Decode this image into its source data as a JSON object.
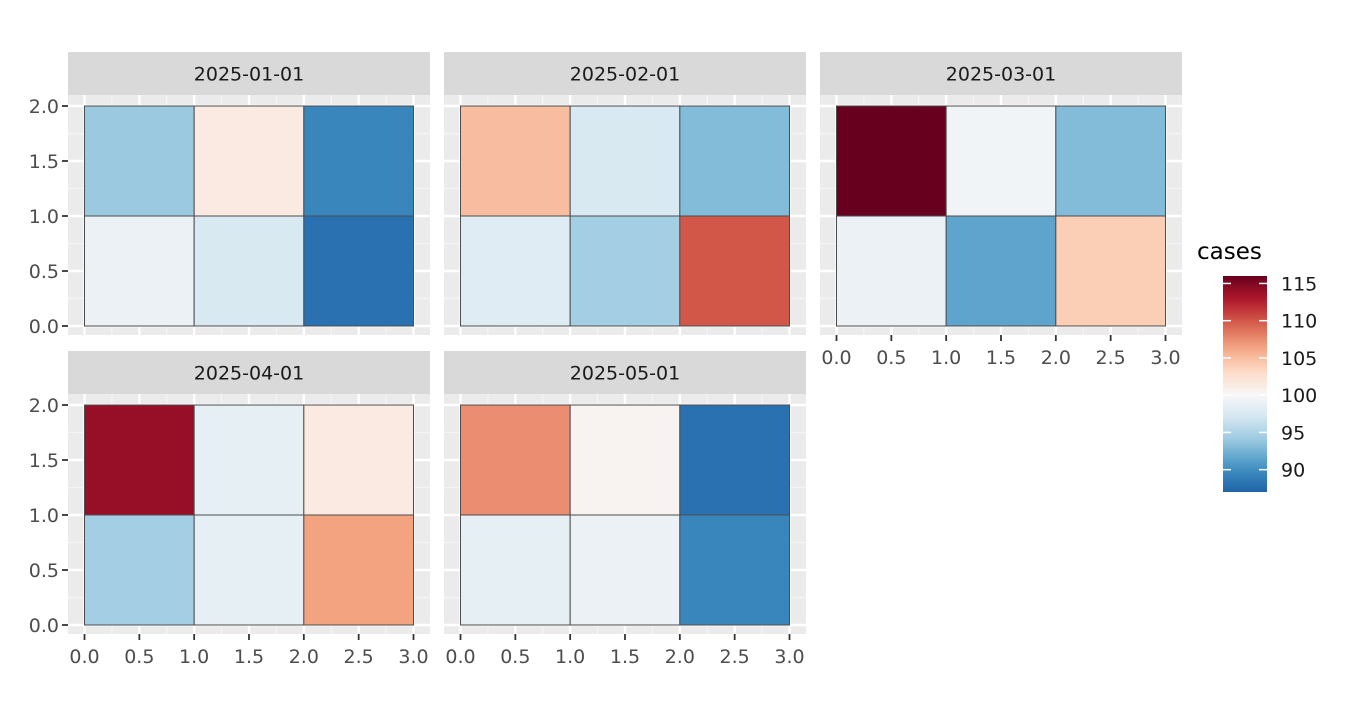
{
  "chart_data": {
    "type": "heatmap",
    "facet_by": "date",
    "x_ticks": [
      "0.0",
      "0.5",
      "1.0",
      "1.5",
      "2.0",
      "2.5",
      "3.0"
    ],
    "y_ticks": [
      "0.0",
      "0.5",
      "1.0",
      "1.5",
      "2.0"
    ],
    "xlim": [
      0,
      3
    ],
    "ylim": [
      0,
      2
    ],
    "grid": true,
    "panels": [
      {
        "title": "2025-01-01",
        "cells": [
          {
            "x": 0,
            "y": 1,
            "value": 94
          },
          {
            "x": 1,
            "y": 1,
            "value": 101.5
          },
          {
            "x": 2,
            "y": 1,
            "value": 89.5
          },
          {
            "x": 0,
            "y": 0,
            "value": 99
          },
          {
            "x": 1,
            "y": 0,
            "value": 97.5
          },
          {
            "x": 2,
            "y": 0,
            "value": 88
          }
        ]
      },
      {
        "title": "2025-02-01",
        "cells": [
          {
            "x": 0,
            "y": 1,
            "value": 105
          },
          {
            "x": 1,
            "y": 1,
            "value": 97.5
          },
          {
            "x": 2,
            "y": 1,
            "value": 93
          }
        ]
      },
      {
        "title": "2025-03-01",
        "cells": [
          {
            "x": 0,
            "y": 1,
            "value": 116
          },
          {
            "x": 1,
            "y": 1,
            "value": 99.5
          },
          {
            "x": 2,
            "y": 1,
            "value": 93
          }
        ]
      },
      {
        "title": "2025-04-01",
        "cells": [
          {
            "x": 0,
            "y": 1,
            "value": 114
          },
          {
            "x": 1,
            "y": 1,
            "value": 98.5
          },
          {
            "x": 2,
            "y": 1,
            "value": 101.5
          }
        ]
      },
      {
        "title": "2025-05-01",
        "cells": [
          {
            "x": 0,
            "y": 1,
            "value": 107.5
          },
          {
            "x": 1,
            "y": 1,
            "value": 100.5
          },
          {
            "x": 2,
            "y": 1,
            "value": 88
          }
        ]
      }
    ],
    "legend": {
      "title": "cases",
      "placement": "right",
      "range": [
        87,
        116
      ],
      "ticks": [
        {
          "value": 115,
          "label": "115"
        },
        {
          "value": 110,
          "label": "110"
        },
        {
          "value": 105,
          "label": "105"
        },
        {
          "value": 100,
          "label": "100"
        },
        {
          "value": 95,
          "label": "95"
        },
        {
          "value": 90,
          "label": "90"
        }
      ],
      "colormap": "RdBu",
      "midpoint": 100
    }
  }
}
